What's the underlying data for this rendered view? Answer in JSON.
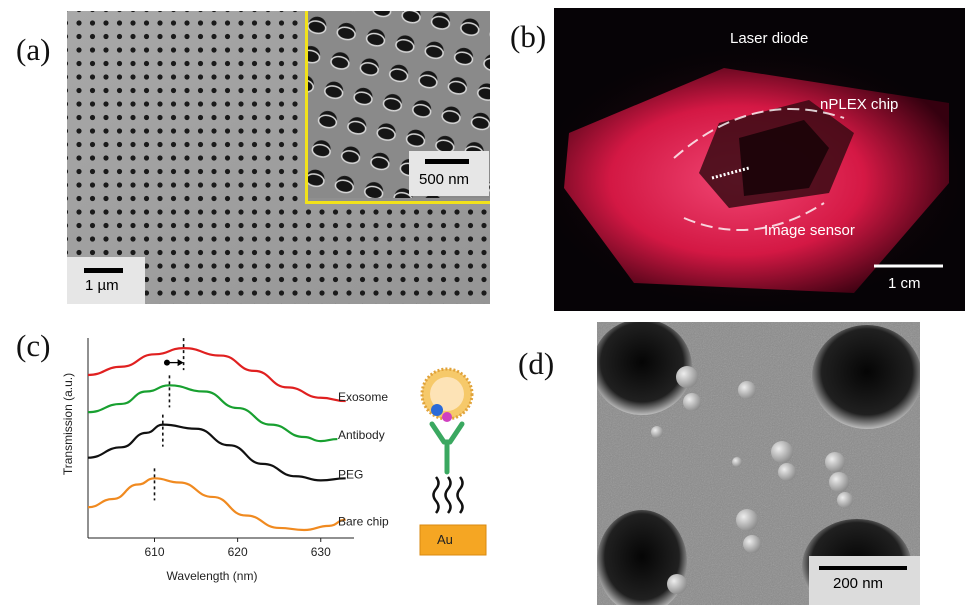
{
  "panels": {
    "a": {
      "label": "(a)",
      "main_scale": "1 µm",
      "inset_scale": "500 nm",
      "inset_border_color": "#f2e21a"
    },
    "b": {
      "label": "(b)",
      "annotations": {
        "laser": "Laser diode",
        "chip": "nPLEX chip",
        "sensor": "Image sensor"
      },
      "scale": "1 cm",
      "glow_color": "#ff2a5c"
    },
    "c": {
      "label": "(c)",
      "substrate_label": "Au"
    },
    "d": {
      "label": "(d)",
      "scale": "200 nm"
    }
  },
  "chart_data": {
    "type": "line",
    "xlabel": "Wavelength (nm)",
    "ylabel": "Transmission (a.u.)",
    "xlim": [
      602,
      634
    ],
    "x_ticks": [
      610,
      620,
      630
    ],
    "series": [
      {
        "name": "Exosome",
        "color": "#e02020",
        "peak": 613.5,
        "x": [
          602,
          606,
          610,
          613.5,
          618,
          622,
          626,
          630,
          633
        ],
        "y": [
          3.75,
          3.95,
          4.25,
          4.4,
          4.22,
          3.85,
          3.45,
          3.2,
          3.12
        ]
      },
      {
        "name": "Antibody",
        "color": "#18a030",
        "peak": 611.8,
        "x": [
          602,
          606,
          609,
          611.8,
          616,
          620,
          624,
          628,
          630,
          632
        ],
        "y": [
          2.85,
          3.05,
          3.35,
          3.5,
          3.35,
          2.95,
          2.55,
          2.25,
          2.15,
          2.2
        ]
      },
      {
        "name": "PEG",
        "color": "#111111",
        "peak": 611.0,
        "x": [
          602,
          606,
          609,
          611,
          615,
          619,
          623,
          627,
          630,
          633
        ],
        "y": [
          1.75,
          2.0,
          2.35,
          2.55,
          2.45,
          2.05,
          1.6,
          1.3,
          1.2,
          1.25
        ]
      },
      {
        "name": "Bare chip",
        "color": "#f08a20",
        "peak": 610.0,
        "x": [
          602,
          605,
          608,
          610,
          613,
          617,
          621,
          625,
          628,
          631,
          633
        ],
        "y": [
          0.55,
          0.75,
          1.1,
          1.25,
          1.15,
          0.8,
          0.35,
          0.05,
          0.0,
          0.1,
          0.25
        ]
      }
    ],
    "shift_arrow_x": [
      611.5,
      613.5
    ]
  }
}
